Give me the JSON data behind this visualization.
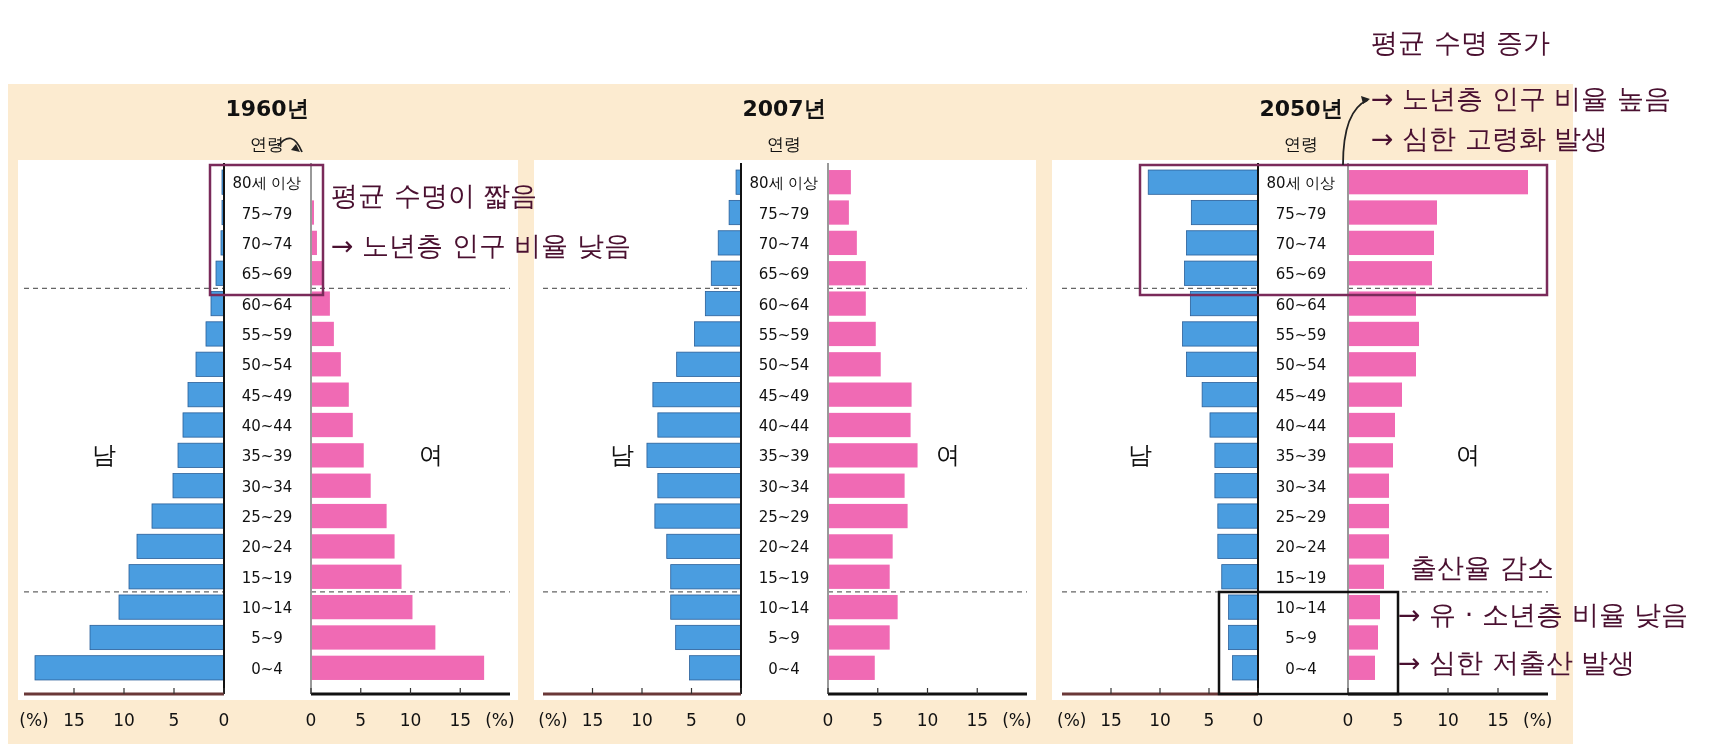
{
  "chart_data": [
    {
      "type": "bar",
      "orientation": "horizontal",
      "title": "1960년",
      "ylabel": "연령",
      "xlabel": "(%)",
      "categories": [
        "80세 이상",
        "75~79",
        "70~74",
        "65~69",
        "60~64",
        "55~59",
        "50~54",
        "45~49",
        "40~44",
        "35~39",
        "30~34",
        "25~29",
        "20~24",
        "15~19",
        "10~14",
        "5~9",
        "0~4"
      ],
      "xlim": [
        20,
        0
      ],
      "xticks": [
        15,
        10,
        5,
        0
      ],
      "series": [
        {
          "name": "남",
          "color": "#4a9de0",
          "values": [
            0.2,
            0.2,
            0.3,
            0.8,
            1.3,
            1.8,
            2.8,
            3.6,
            4.1,
            4.6,
            5.1,
            7.2,
            8.7,
            9.5,
            10.5,
            13.4,
            18.9
          ]
        }
      ]
    },
    {
      "type": "bar",
      "orientation": "horizontal",
      "xlabel": "(%)",
      "tick_labels": "x",
      "xlim": [
        0,
        20
      ],
      "xticks": [
        0,
        5,
        10,
        15
      ],
      "annotations": [
        "평균 수명이 짧음",
        "→ 노년층 인구 비율 낮음"
      ],
      "series": [
        {
          "name": "여",
          "color": "#f06ab4",
          "values": [
            null,
            0.3,
            0.6,
            1.3,
            1.9,
            2.3,
            3.0,
            3.8,
            4.2,
            5.3,
            6.0,
            7.6,
            8.4,
            9.1,
            10.2,
            12.5,
            17.4
          ]
        }
      ]
    },
    {
      "type": "bar",
      "orientation": "horizontal",
      "title": "2007년",
      "ylabel": "연령",
      "xlabel": "(%)",
      "categories": [
        "80세 이상",
        "75~79",
        "70~74",
        "65~69",
        "60~64",
        "55~59",
        "50~54",
        "45~49",
        "40~44",
        "35~39",
        "30~34",
        "25~29",
        "20~24",
        "15~19",
        "10~14",
        "5~9",
        "0~4"
      ],
      "xlim": [
        20,
        0
      ],
      "xticks": [
        15,
        10,
        5,
        0
      ],
      "series": [
        {
          "name": "남",
          "color": "#4a9de0",
          "values": [
            0.5,
            1.2,
            2.3,
            3.0,
            3.6,
            4.7,
            6.5,
            8.9,
            8.4,
            9.5,
            8.4,
            8.7,
            7.5,
            7.1,
            7.1,
            6.6,
            5.2
          ]
        }
      ]
    },
    {
      "type": "bar",
      "orientation": "horizontal",
      "xlabel": "(%)",
      "tick_labels": "x",
      "xlim": [
        0,
        20
      ],
      "xticks": [
        0,
        5,
        10,
        15
      ],
      "series": [
        {
          "name": "여",
          "color": "#f06ab4",
          "values": [
            2.3,
            2.1,
            2.9,
            3.8,
            3.8,
            4.8,
            5.3,
            8.4,
            8.3,
            9.0,
            7.7,
            8.0,
            6.5,
            6.2,
            7.0,
            6.2,
            4.7
          ]
        }
      ]
    },
    {
      "type": "bar",
      "orientation": "horizontal",
      "title": "2050년",
      "ylabel": "연령",
      "xlabel": "(%)",
      "categories": [
        "80세 이상",
        "75~79",
        "70~74",
        "65~69",
        "60~64",
        "55~59",
        "50~54",
        "45~49",
        "40~44",
        "35~39",
        "30~34",
        "25~29",
        "20~24",
        "15~19",
        "10~14",
        "5~9",
        "0~4"
      ],
      "xlim": [
        20,
        0
      ],
      "xticks": [
        15,
        10,
        5,
        0
      ],
      "series": [
        {
          "name": "남",
          "color": "#4a9de0",
          "values": [
            11.2,
            6.8,
            7.3,
            7.5,
            6.9,
            7.7,
            7.3,
            5.7,
            4.9,
            4.4,
            4.4,
            4.1,
            4.1,
            3.7,
            3.0,
            3.0,
            2.6
          ]
        }
      ]
    },
    {
      "type": "bar",
      "orientation": "horizontal",
      "xlabel": "(%)",
      "tick_labels": "x",
      "xlim": [
        0,
        20
      ],
      "xticks": [
        0,
        5,
        10,
        15
      ],
      "annotations": [
        "평균 수명 증가",
        "→ 노년층 인구 비율 높음",
        "→ 심한 고령화 발생",
        "출산율 감소",
        "→ 유 · 소년층 비율 낮음",
        "→ 심한 저출산 발생"
      ],
      "series": [
        {
          "name": "여",
          "color": "#f06ab4",
          "values": [
            18.0,
            8.9,
            8.6,
            8.4,
            6.8,
            7.1,
            6.8,
            5.4,
            4.7,
            4.5,
            4.1,
            4.1,
            4.1,
            3.6,
            3.2,
            3.0,
            2.7
          ]
        }
      ]
    }
  ]
}
